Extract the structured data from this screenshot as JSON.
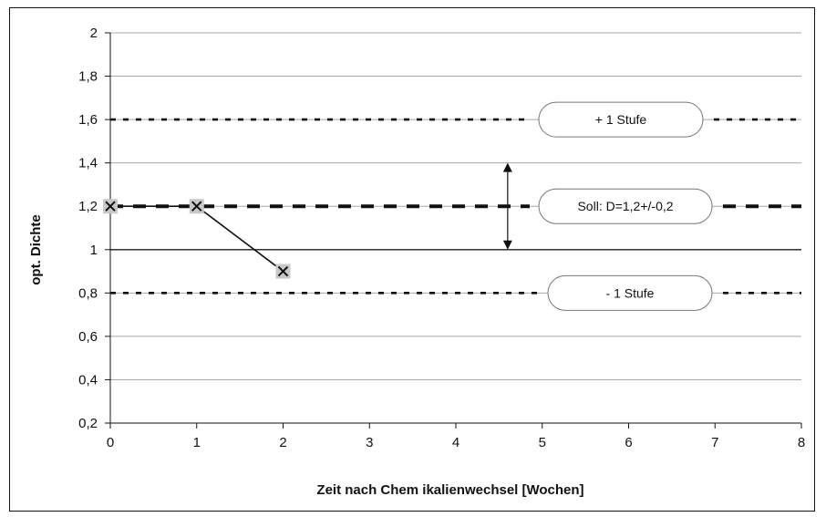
{
  "chart_data": {
    "type": "line",
    "title": "",
    "xlabel": "Zeit nach Chem ikalienwechsel [Wochen]",
    "ylabel": "opt. Dichte",
    "xlim": [
      0,
      8
    ],
    "ylim": [
      0.2,
      2
    ],
    "x_ticks": [
      "0",
      "1",
      "2",
      "3",
      "4",
      "5",
      "6",
      "7",
      "8"
    ],
    "y_ticks": [
      "0,2",
      "0,4",
      "0,6",
      "0,8",
      "1",
      "1,2",
      "1,4",
      "1,6",
      "1,8",
      "2"
    ],
    "grid": "horizontal",
    "series": [
      {
        "x": [
          0,
          1,
          2
        ],
        "values": [
          1.2,
          1.2,
          0.9
        ]
      }
    ],
    "reference_lines": [
      {
        "y": 1.6,
        "style": "dotted",
        "label": "+ 1 Stufe"
      },
      {
        "y": 1.2,
        "style": "dashed-bold",
        "label": "Soll: D=1,2+/-0,2"
      },
      {
        "y": 0.8,
        "style": "dotted",
        "label": "- 1 Stufe"
      }
    ],
    "range_arrow": {
      "x": 4.6,
      "from": 1.0,
      "to": 1.4
    }
  }
}
